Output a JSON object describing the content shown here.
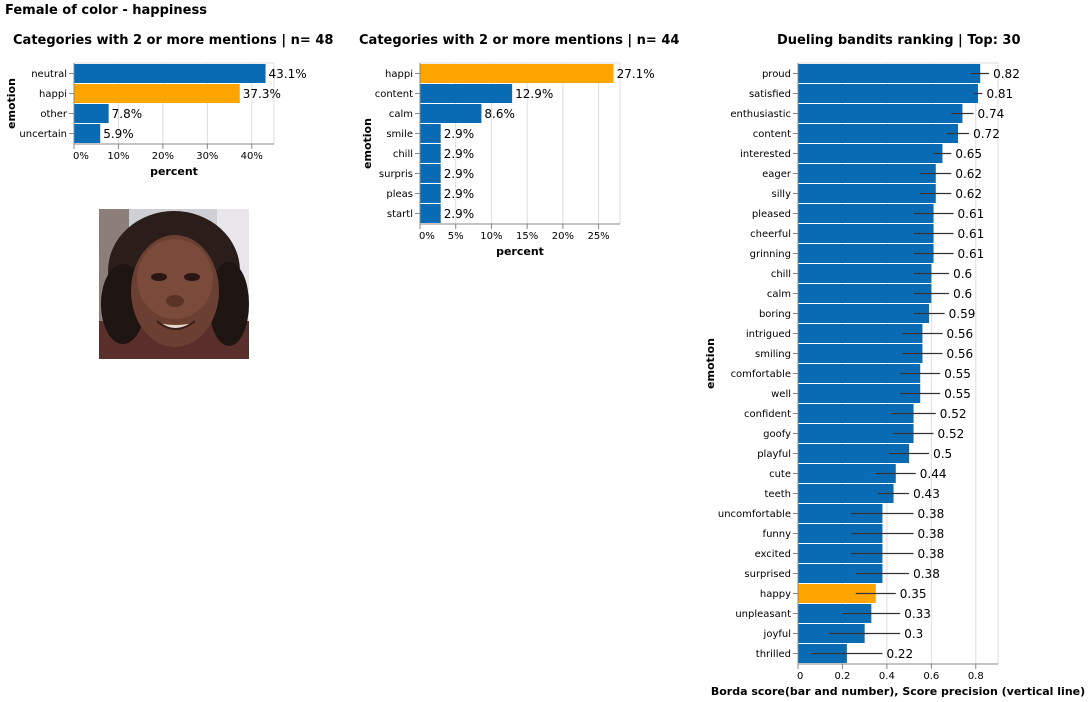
{
  "page": {
    "title": "Female of color - happiness"
  },
  "colors": {
    "primary": "#0a6bb5",
    "highlight": "#ffa500",
    "grid": "#dddddd",
    "axis": "#888888"
  },
  "chart_data": [
    {
      "type": "bar",
      "orientation": "horizontal",
      "title": "Categories with 2 or more mentions | n= 48",
      "xlabel": "percent",
      "ylabel": "emotion",
      "categories": [
        "neutral",
        "happi",
        "other",
        "uncertain"
      ],
      "values": [
        43.1,
        37.3,
        7.8,
        5.9
      ],
      "value_labels": [
        "43.1%",
        "37.3%",
        "7.8%",
        "5.9%"
      ],
      "highlight": [
        "happi"
      ],
      "xlim": [
        0,
        45
      ],
      "xticks": [
        0,
        10,
        20,
        30,
        40
      ],
      "xtick_labels": [
        "0%",
        "10%",
        "20%",
        "30%",
        "40%"
      ],
      "grid": true
    },
    {
      "type": "bar",
      "orientation": "horizontal",
      "title": "Categories with 2 or more mentions | n= 44",
      "xlabel": "percent",
      "ylabel": "emotion",
      "categories": [
        "happi",
        "content",
        "calm",
        "smile",
        "chill",
        "surpris",
        "pleas",
        "startl"
      ],
      "values": [
        27.1,
        12.9,
        8.6,
        2.9,
        2.9,
        2.9,
        2.9,
        2.9
      ],
      "value_labels": [
        "27.1%",
        "12.9%",
        "8.6%",
        "2.9%",
        "2.9%",
        "2.9%",
        "2.9%",
        "2.9%"
      ],
      "highlight": [
        "happi"
      ],
      "xlim": [
        0,
        28
      ],
      "xticks": [
        0,
        5,
        10,
        15,
        20,
        25
      ],
      "xtick_labels": [
        "0%",
        "5%",
        "10%",
        "15%",
        "20%",
        "25%"
      ],
      "grid": true
    },
    {
      "type": "bar",
      "orientation": "horizontal",
      "title": "Dueling bandits ranking | Top: 30",
      "xlabel": "Borda score(bar and number), Score precision (vertical line)",
      "ylabel": "emotion",
      "categories": [
        "proud",
        "satisfied",
        "enthusiastic",
        "content",
        "interested",
        "eager",
        "silly",
        "pleased",
        "cheerful",
        "grinning",
        "chill",
        "calm",
        "boring",
        "intrigued",
        "smiling",
        "comfortable",
        "well",
        "confident",
        "goofy",
        "playful",
        "cute",
        "teeth",
        "uncomfortable",
        "funny",
        "excited",
        "surprised",
        "happy",
        "unpleasant",
        "joyful",
        "thrilled"
      ],
      "values": [
        0.82,
        0.81,
        0.74,
        0.72,
        0.65,
        0.62,
        0.62,
        0.61,
        0.61,
        0.61,
        0.6,
        0.6,
        0.59,
        0.56,
        0.56,
        0.55,
        0.55,
        0.52,
        0.52,
        0.5,
        0.44,
        0.43,
        0.38,
        0.38,
        0.38,
        0.38,
        0.35,
        0.33,
        0.3,
        0.22
      ],
      "value_labels": [
        "0.82",
        "0.81",
        "0.74",
        "0.72",
        "0.65",
        "0.62",
        "0.62",
        "0.61",
        "0.61",
        "0.61",
        "0.6",
        "0.6",
        "0.59",
        "0.56",
        "0.56",
        "0.55",
        "0.55",
        "0.52",
        "0.52",
        "0.5",
        "0.44",
        "0.43",
        "0.38",
        "0.38",
        "0.38",
        "0.38",
        "0.35",
        "0.33",
        "0.3",
        "0.22"
      ],
      "errors": [
        [
          0.78,
          0.86
        ],
        [
          0.79,
          0.83
        ],
        [
          0.69,
          0.79
        ],
        [
          0.67,
          0.77
        ],
        [
          0.61,
          0.69
        ],
        [
          0.55,
          0.69
        ],
        [
          0.55,
          0.69
        ],
        [
          0.52,
          0.7
        ],
        [
          0.52,
          0.7
        ],
        [
          0.52,
          0.7
        ],
        [
          0.52,
          0.68
        ],
        [
          0.52,
          0.68
        ],
        [
          0.52,
          0.66
        ],
        [
          0.47,
          0.65
        ],
        [
          0.47,
          0.65
        ],
        [
          0.46,
          0.64
        ],
        [
          0.46,
          0.64
        ],
        [
          0.42,
          0.62
        ],
        [
          0.43,
          0.61
        ],
        [
          0.41,
          0.59
        ],
        [
          0.35,
          0.53
        ],
        [
          0.36,
          0.5
        ],
        [
          0.24,
          0.52
        ],
        [
          0.24,
          0.52
        ],
        [
          0.24,
          0.52
        ],
        [
          0.26,
          0.5
        ],
        [
          0.26,
          0.44
        ],
        [
          0.2,
          0.46
        ],
        [
          0.14,
          0.46
        ],
        [
          0.06,
          0.38
        ]
      ],
      "highlight": [
        "happy"
      ],
      "xlim": [
        0,
        0.9
      ],
      "xticks": [
        0,
        0.2,
        0.4,
        0.6,
        0.8
      ],
      "xtick_labels": [
        "0",
        "0.2",
        "0.4",
        "0.6",
        "0.8"
      ],
      "grid": true
    }
  ]
}
